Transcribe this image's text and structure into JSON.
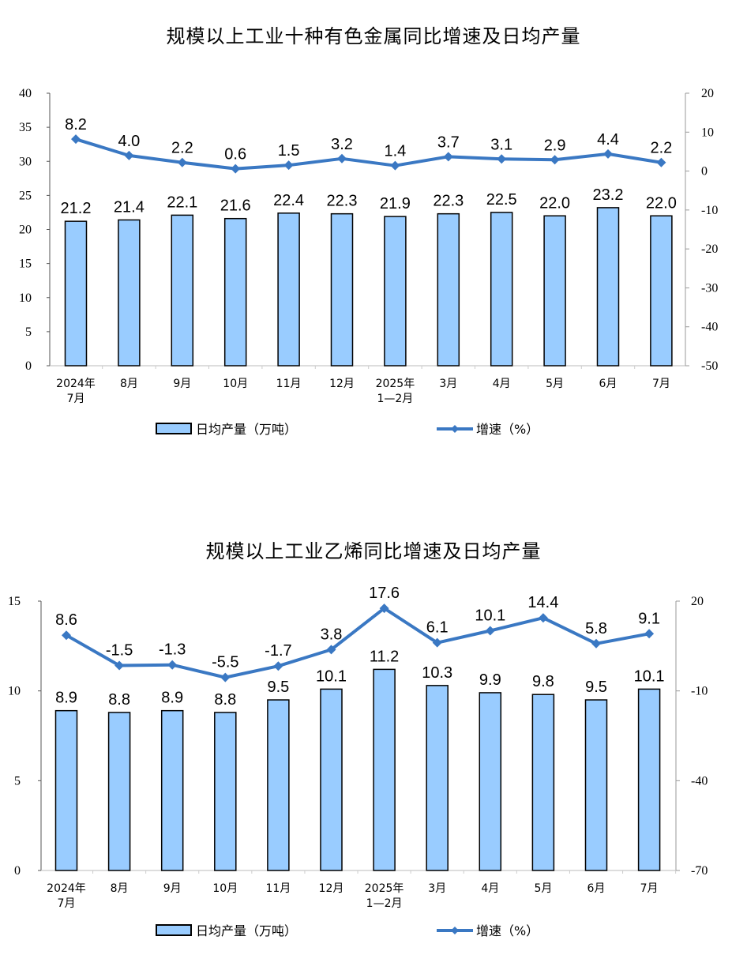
{
  "charts": [
    {
      "title": "规模以上工业十种有色金属同比增速及日均产量",
      "legend": {
        "bar_label": "日均产量（万吨）",
        "line_label": "增速（%）"
      },
      "left_axis_ticks": [
        "0",
        "5",
        "10",
        "15",
        "20",
        "25",
        "30",
        "35",
        "40"
      ],
      "right_axis_ticks": [
        "-50",
        "-40",
        "-30",
        "-20",
        "-10",
        "0",
        "10",
        "20"
      ],
      "categories": [
        [
          "2024年",
          "7月"
        ],
        [
          "8月"
        ],
        [
          "9月"
        ],
        [
          "10月"
        ],
        [
          "11月"
        ],
        [
          "12月"
        ],
        [
          "2025年",
          "1—2月"
        ],
        [
          "3月"
        ],
        [
          "4月"
        ],
        [
          "5月"
        ],
        [
          "6月"
        ],
        [
          "7月"
        ]
      ],
      "bar_labels": [
        "21.2",
        "21.4",
        "22.1",
        "21.6",
        "22.4",
        "22.3",
        "21.9",
        "22.3",
        "22.5",
        "22.0",
        "23.2",
        "22.0"
      ],
      "line_labels": [
        "8.2",
        "4.0",
        "2.2",
        "0.6",
        "1.5",
        "3.2",
        "1.4",
        "3.7",
        "3.1",
        "2.9",
        "4.4",
        "2.2"
      ]
    },
    {
      "title": "规模以上工业乙烯同比增速及日均产量",
      "legend": {
        "bar_label": "日均产量（万吨）",
        "line_label": "增速（%）"
      },
      "left_axis_ticks": [
        "0",
        "5",
        "10",
        "15"
      ],
      "right_axis_ticks": [
        "-70",
        "-40",
        "-10",
        "20"
      ],
      "categories": [
        [
          "2024年",
          "7月"
        ],
        [
          "8月"
        ],
        [
          "9月"
        ],
        [
          "10月"
        ],
        [
          "11月"
        ],
        [
          "12月"
        ],
        [
          "2025年",
          "1—2月"
        ],
        [
          "3月"
        ],
        [
          "4月"
        ],
        [
          "5月"
        ],
        [
          "6月"
        ],
        [
          "7月"
        ]
      ],
      "bar_labels": [
        "8.9",
        "8.8",
        "8.9",
        "8.8",
        "9.5",
        "10.1",
        "11.2",
        "10.3",
        "9.9",
        "9.8",
        "9.5",
        "10.1"
      ],
      "line_labels": [
        "8.6",
        "-1.5",
        "-1.3",
        "-5.5",
        "-1.7",
        "3.8",
        "17.6",
        "6.1",
        "10.1",
        "14.4",
        "5.8",
        "9.1"
      ]
    }
  ],
  "colors": {
    "bar_fill": "#99CCFF",
    "bar_stroke": "#000000",
    "line": "#3A78C3",
    "axis": "#888888"
  },
  "chart_data": [
    {
      "type": "bar+line",
      "title": "规模以上工业十种有色金属同比增速及日均产量",
      "categories": [
        "2024年7月",
        "8月",
        "9月",
        "10月",
        "11月",
        "12月",
        "2025年1—2月",
        "3月",
        "4月",
        "5月",
        "6月",
        "7月"
      ],
      "series": [
        {
          "name": "日均产量（万吨）",
          "type": "bar",
          "axis": "left",
          "values": [
            21.2,
            21.4,
            22.1,
            21.6,
            22.4,
            22.3,
            21.9,
            22.3,
            22.5,
            22.0,
            23.2,
            22.0
          ]
        },
        {
          "name": "增速（%）",
          "type": "line",
          "axis": "right",
          "values": [
            8.2,
            4.0,
            2.2,
            0.6,
            1.5,
            3.2,
            1.4,
            3.7,
            3.1,
            2.9,
            4.4,
            2.2
          ]
        }
      ],
      "ylim_left": [
        0,
        40
      ],
      "ylim_right": [
        -50,
        20
      ],
      "left_ticks": [
        0,
        5,
        10,
        15,
        20,
        25,
        30,
        35,
        40
      ],
      "right_ticks": [
        -50,
        -40,
        -30,
        -20,
        -10,
        0,
        10,
        20
      ],
      "grid": false,
      "legend_position": "bottom"
    },
    {
      "type": "bar+line",
      "title": "规模以上工业乙烯同比增速及日均产量",
      "categories": [
        "2024年7月",
        "8月",
        "9月",
        "10月",
        "11月",
        "12月",
        "2025年1—2月",
        "3月",
        "4月",
        "5月",
        "6月",
        "7月"
      ],
      "series": [
        {
          "name": "日均产量（万吨）",
          "type": "bar",
          "axis": "left",
          "values": [
            8.9,
            8.8,
            8.9,
            8.8,
            9.5,
            10.1,
            11.2,
            10.3,
            9.9,
            9.8,
            9.5,
            10.1
          ]
        },
        {
          "name": "增速（%）",
          "type": "line",
          "axis": "right",
          "values": [
            8.6,
            -1.5,
            -1.3,
            -5.5,
            -1.7,
            3.8,
            17.6,
            6.1,
            10.1,
            14.4,
            5.8,
            9.1
          ]
        }
      ],
      "ylim_left": [
        0,
        15
      ],
      "ylim_right": [
        -70,
        20
      ],
      "left_ticks": [
        0,
        5,
        10,
        15
      ],
      "right_ticks": [
        -70,
        -40,
        -10,
        20
      ],
      "grid": false,
      "legend_position": "bottom"
    }
  ]
}
